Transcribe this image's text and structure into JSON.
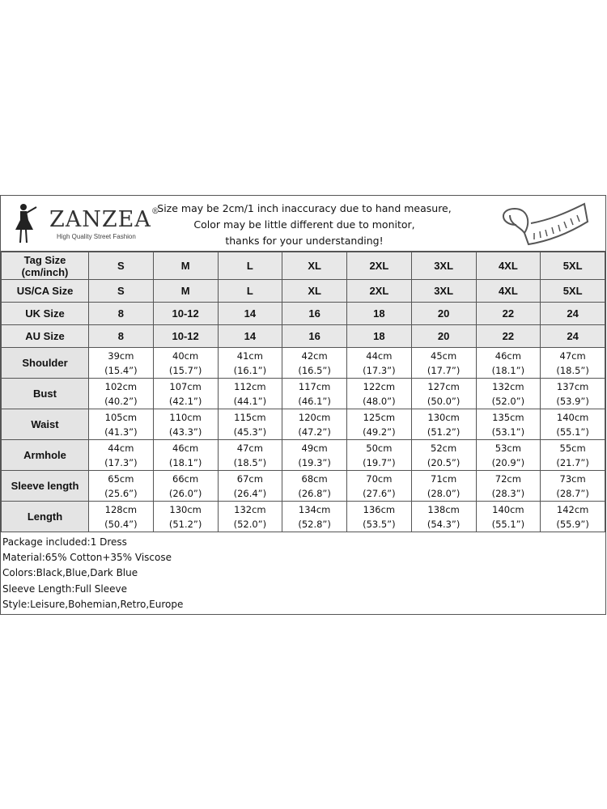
{
  "brand": {
    "name": "ZANZEA",
    "registered": "®",
    "tagline": "High Quality Street Fashion"
  },
  "notice": [
    "Size may be 2cm/1 inch inaccuracy due to hand measure,",
    "Color may be little different due to monitor,",
    "thanks for your understanding!"
  ],
  "size_rows": [
    {
      "label": "Tag Size (cm/inch)",
      "values": [
        "S",
        "M",
        "L",
        "XL",
        "2XL",
        "3XL",
        "4XL",
        "5XL"
      ]
    },
    {
      "label": "US/CA Size",
      "values": [
        "S",
        "M",
        "L",
        "XL",
        "2XL",
        "3XL",
        "4XL",
        "5XL"
      ]
    },
    {
      "label": "UK Size",
      "values": [
        "8",
        "10-12",
        "14",
        "16",
        "18",
        "20",
        "22",
        "24"
      ]
    },
    {
      "label": "AU Size",
      "values": [
        "8",
        "10-12",
        "14",
        "16",
        "18",
        "20",
        "22",
        "24"
      ]
    }
  ],
  "measure_rows": [
    {
      "label": "Shoulder",
      "cm": [
        "39cm",
        "40cm",
        "41cm",
        "42cm",
        "44cm",
        "45cm",
        "46cm",
        "47cm"
      ],
      "inch": [
        "(15.4”)",
        "(15.7”)",
        "(16.1”)",
        "(16.5”)",
        "(17.3”)",
        "(17.7”)",
        "(18.1”)",
        "(18.5”)"
      ]
    },
    {
      "label": "Bust",
      "cm": [
        "102cm",
        "107cm",
        "112cm",
        "117cm",
        "122cm",
        "127cm",
        "132cm",
        "137cm"
      ],
      "inch": [
        "(40.2”)",
        "(42.1”)",
        "(44.1”)",
        "(46.1”)",
        "(48.0”)",
        "(50.0”)",
        "(52.0”)",
        "(53.9”)"
      ]
    },
    {
      "label": "Waist",
      "cm": [
        "105cm",
        "110cm",
        "115cm",
        "120cm",
        "125cm",
        "130cm",
        "135cm",
        "140cm"
      ],
      "inch": [
        "(41.3”)",
        "(43.3”)",
        "(45.3”)",
        "(47.2”)",
        "(49.2”)",
        "(51.2”)",
        "(53.1”)",
        "(55.1”)"
      ]
    },
    {
      "label": "Armhole",
      "cm": [
        "44cm",
        "46cm",
        "47cm",
        "49cm",
        "50cm",
        "52cm",
        "53cm",
        "55cm"
      ],
      "inch": [
        "(17.3”)",
        "(18.1”)",
        "(18.5”)",
        "(19.3”)",
        "(19.7”)",
        "(20.5”)",
        "(20.9”)",
        "(21.7”)"
      ]
    },
    {
      "label": "Sleeve length",
      "cm": [
        "65cm",
        "66cm",
        "67cm",
        "68cm",
        "70cm",
        "71cm",
        "72cm",
        "73cm"
      ],
      "inch": [
        "(25.6”)",
        "(26.0”)",
        "(26.4”)",
        "(26.8”)",
        "(27.6”)",
        "(28.0”)",
        "(28.3”)",
        "(28.7”)"
      ]
    },
    {
      "label": "Length",
      "cm": [
        "128cm",
        "130cm",
        "132cm",
        "134cm",
        "136cm",
        "138cm",
        "140cm",
        "142cm"
      ],
      "inch": [
        "(50.4”)",
        "(51.2”)",
        "(52.0”)",
        "(52.8”)",
        "(53.5”)",
        "(54.3”)",
        "(55.1”)",
        "(55.9”)"
      ]
    }
  ],
  "notes": [
    "Package included:1 Dress",
    "Material:65% Cotton+35% Viscose",
    "Colors:Black,Blue,Dark Blue",
    "Sleeve Length:Full Sleeve",
    "Style:Leisure,Bohemian,Retro,Europe"
  ]
}
